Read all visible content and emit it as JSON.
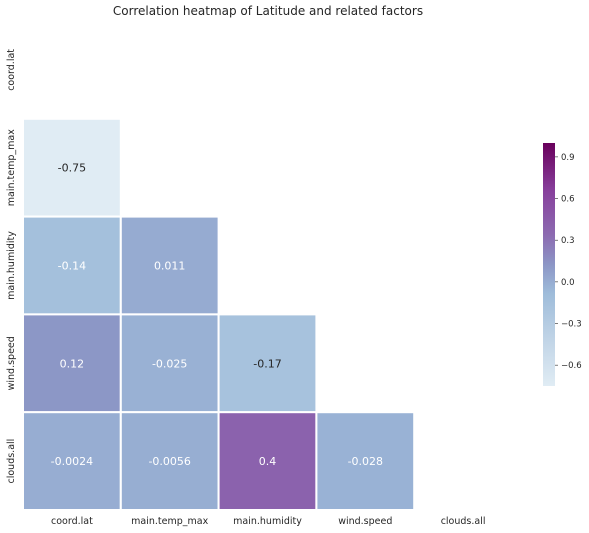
{
  "chart_data": {
    "type": "heatmap",
    "title": "Correlation heatmap of Latitude and related factors",
    "variables": [
      "coord.lat",
      "main.temp_max",
      "main.humidity",
      "wind.speed",
      "clouds.all"
    ],
    "mask": "upper-triangle-including-diagonal",
    "cells": [
      {
        "row": "main.temp_max",
        "col": "coord.lat",
        "value": -0.75,
        "label": "-0.75"
      },
      {
        "row": "main.humidity",
        "col": "coord.lat",
        "value": -0.14,
        "label": "-0.14"
      },
      {
        "row": "main.humidity",
        "col": "main.temp_max",
        "value": 0.011,
        "label": "0.011"
      },
      {
        "row": "wind.speed",
        "col": "coord.lat",
        "value": 0.12,
        "label": "0.12"
      },
      {
        "row": "wind.speed",
        "col": "main.temp_max",
        "value": -0.025,
        "label": "-0.025"
      },
      {
        "row": "wind.speed",
        "col": "main.humidity",
        "value": -0.17,
        "label": "-0.17"
      },
      {
        "row": "clouds.all",
        "col": "coord.lat",
        "value": -0.0024,
        "label": "-0.0024"
      },
      {
        "row": "clouds.all",
        "col": "main.temp_max",
        "value": -0.0056,
        "label": "-0.0056"
      },
      {
        "row": "clouds.all",
        "col": "main.humidity",
        "value": 0.4,
        "label": "0.4"
      },
      {
        "row": "clouds.all",
        "col": "wind.speed",
        "value": -0.028,
        "label": "-0.028"
      }
    ],
    "colorbar": {
      "range": [
        -0.75,
        1.0
      ],
      "ticks": [
        "0.9",
        "0.6",
        "0.3",
        "0.0",
        "−0.3",
        "−0.6"
      ],
      "tick_values": [
        0.9,
        0.6,
        0.3,
        0.0,
        -0.3,
        -0.6
      ],
      "colormap": "BuPu",
      "placement": "right"
    },
    "grid": false
  }
}
